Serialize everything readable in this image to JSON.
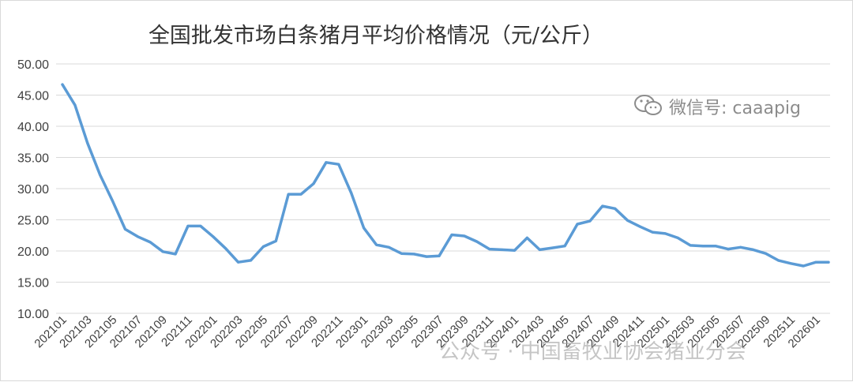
{
  "chart_data": {
    "type": "line",
    "title": "全国批发市场白条猪月平均价格情况（元/公斤）",
    "ylim": [
      10,
      50
    ],
    "y_ticks": [
      "10.00",
      "15.00",
      "20.00",
      "25.00",
      "30.00",
      "35.00",
      "40.00",
      "45.00",
      "50.00"
    ],
    "x_tick_labels": [
      "202101",
      "202103",
      "202105",
      "202107",
      "202109",
      "202111",
      "202201",
      "202203",
      "202205",
      "202207",
      "202209",
      "202211",
      "202301",
      "202303",
      "202305",
      "202307",
      "202309",
      "202311",
      "202401",
      "202403",
      "202405",
      "202407",
      "202409",
      "202411",
      "202501",
      "202503",
      "202505",
      "202507",
      "202509",
      "202511",
      "202601"
    ],
    "grid": true,
    "legend": "none",
    "line_color": "#5b9bd5",
    "x": [
      "202101",
      "202102",
      "202103",
      "202104",
      "202105",
      "202106",
      "202107",
      "202108",
      "202109",
      "202110",
      "202111",
      "202112",
      "202201",
      "202202",
      "202203",
      "202204",
      "202205",
      "202206",
      "202207",
      "202208",
      "202209",
      "202210",
      "202211",
      "202212",
      "202301",
      "202302",
      "202303",
      "202304",
      "202305",
      "202306",
      "202307",
      "202308",
      "202309",
      "202310",
      "202311",
      "202312",
      "202401",
      "202402",
      "202403",
      "202404",
      "202405",
      "202406",
      "202407",
      "202408",
      "202409",
      "202410",
      "202411",
      "202412",
      "202501",
      "202502",
      "202503",
      "202504",
      "202505",
      "202506",
      "202507",
      "202508",
      "202509",
      "202510",
      "202511",
      "202512",
      "202601",
      "202602"
    ],
    "values": [
      46.7,
      43.4,
      37.3,
      32.2,
      28.0,
      23.5,
      22.3,
      21.4,
      19.9,
      19.5,
      24.0,
      24.0,
      22.3,
      20.4,
      18.2,
      18.5,
      20.7,
      21.6,
      29.1,
      29.1,
      30.8,
      34.2,
      33.9,
      29.3,
      23.7,
      21.0,
      20.6,
      19.6,
      19.5,
      19.1,
      19.2,
      22.6,
      22.4,
      21.5,
      20.3,
      20.2,
      20.1,
      22.1,
      20.2,
      20.5,
      20.8,
      24.3,
      24.8,
      27.2,
      26.8,
      24.9,
      23.9,
      23.0,
      22.8,
      22.1,
      20.9,
      20.8,
      20.8,
      20.3,
      20.6,
      20.2,
      19.6,
      18.5,
      18.0,
      17.6,
      18.2,
      18.2
    ]
  },
  "watermark": {
    "icon": "wechat-icon",
    "text": "微信号: caaapig"
  },
  "footer_watermark": "公众号 · 中国畜牧业协会猪业分会"
}
